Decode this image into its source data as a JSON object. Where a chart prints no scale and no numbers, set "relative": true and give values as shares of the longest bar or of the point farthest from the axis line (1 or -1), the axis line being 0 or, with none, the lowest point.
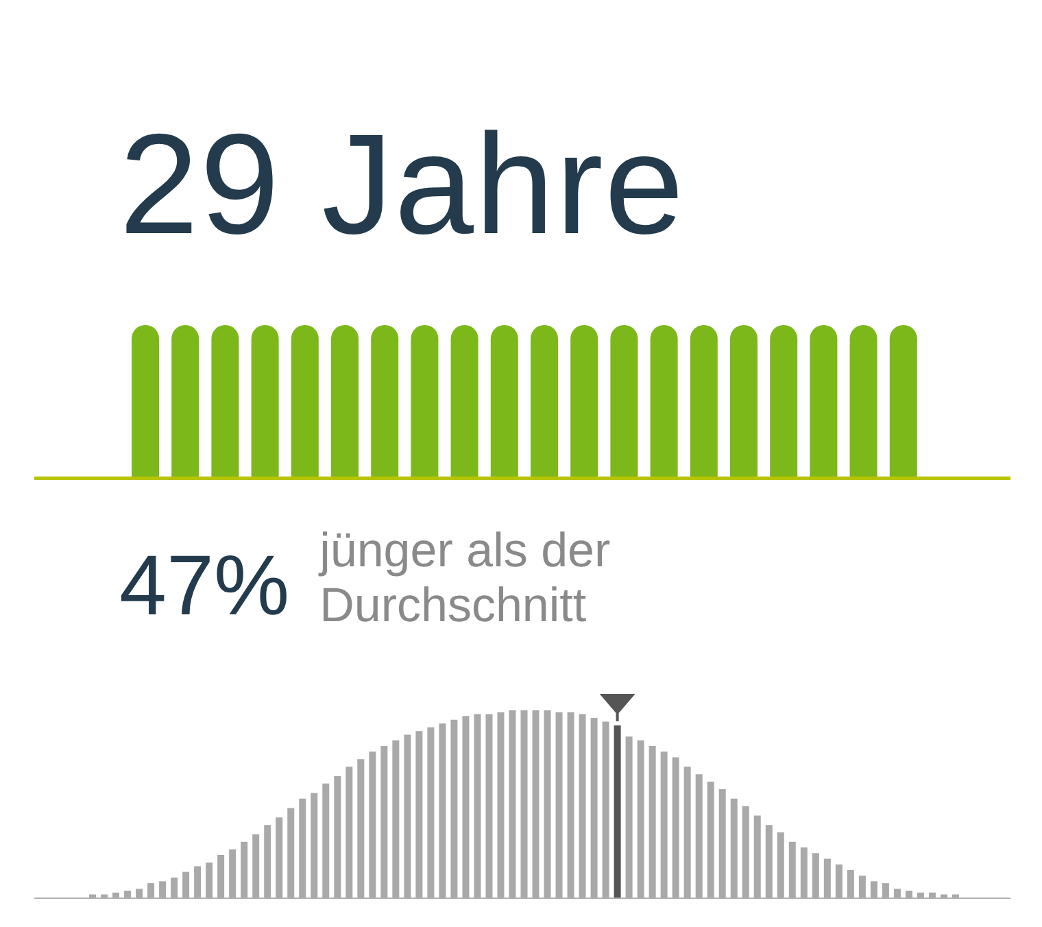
{
  "chart_data": [
    {
      "type": "bar",
      "title": "29 Jahre",
      "relative": true,
      "categories": [
        null,
        null,
        null,
        null,
        null,
        null,
        null,
        null,
        null,
        null,
        null,
        null,
        null,
        null,
        null,
        null,
        null,
        null,
        null,
        null
      ],
      "values": [
        1,
        1,
        1,
        1,
        1,
        1,
        1,
        1,
        1,
        1,
        1,
        1,
        1,
        1,
        1,
        1,
        1,
        1,
        1,
        1
      ],
      "color": "#7cb81a",
      "tick_labels": false
    },
    {
      "type": "bar",
      "title": "47%",
      "subtitle": "jünger als der Durchschnitt",
      "relative": true,
      "tick_labels": false,
      "categories": [
        null,
        null,
        null,
        null,
        null,
        null,
        null,
        null,
        null,
        null,
        null,
        null,
        null,
        null,
        null,
        null,
        null,
        null,
        null,
        null,
        null,
        null,
        null,
        null,
        null,
        null,
        null,
        null,
        null,
        null,
        null,
        null,
        null,
        null,
        null,
        null,
        null,
        null,
        null,
        null,
        null,
        null,
        null,
        null,
        null,
        null,
        null,
        null,
        null,
        null,
        null,
        null,
        null,
        null,
        null,
        null,
        null,
        null,
        null,
        null,
        null,
        null,
        null,
        null,
        null,
        null,
        null,
        null,
        null,
        null,
        null,
        null,
        null,
        null,
        null
      ],
      "values": [
        0.02,
        0.02,
        0.03,
        0.04,
        0.05,
        0.08,
        0.09,
        0.11,
        0.14,
        0.17,
        0.19,
        0.23,
        0.26,
        0.3,
        0.34,
        0.39,
        0.43,
        0.48,
        0.53,
        0.56,
        0.61,
        0.65,
        0.7,
        0.74,
        0.78,
        0.81,
        0.84,
        0.87,
        0.89,
        0.91,
        0.93,
        0.95,
        0.97,
        0.98,
        0.98,
        0.99,
        1,
        1,
        1,
        1,
        0.99,
        0.99,
        0.98,
        0.96,
        0.94,
        0.92,
        0.86,
        0.84,
        0.81,
        0.78,
        0.75,
        0.7,
        0.66,
        0.62,
        0.58,
        0.53,
        0.49,
        0.44,
        0.39,
        0.35,
        0.3,
        0.27,
        0.24,
        0.21,
        0.18,
        0.15,
        0.12,
        0.09,
        0.08,
        0.05,
        0.04,
        0.03,
        0.03,
        0.02,
        0.02
      ],
      "colors": [
        "#a9a9a9",
        "#a9a9a9",
        "#a9a9a9",
        "#a9a9a9",
        "#a9a9a9",
        "#a9a9a9",
        "#a9a9a9",
        "#a9a9a9",
        "#a9a9a9",
        "#a9a9a9",
        "#a9a9a9",
        "#a9a9a9",
        "#a9a9a9",
        "#a9a9a9",
        "#a9a9a9",
        "#a9a9a9",
        "#a9a9a9",
        "#a9a9a9",
        "#a9a9a9",
        "#a9a9a9",
        "#a9a9a9",
        "#a9a9a9",
        "#a9a9a9",
        "#a9a9a9",
        "#a9a9a9",
        "#a9a9a9",
        "#a9a9a9",
        "#a9a9a9",
        "#a9a9a9",
        "#a9a9a9",
        "#a9a9a9",
        "#a9a9a9",
        "#a9a9a9",
        "#a9a9a9",
        "#a9a9a9",
        "#a9a9a9",
        "#a9a9a9",
        "#a9a9a9",
        "#a9a9a9",
        "#a9a9a9",
        "#a9a9a9",
        "#a9a9a9",
        "#a9a9a9",
        "#a9a9a9",
        "#a9a9a9",
        "#555555",
        "#a9a9a9",
        "#a9a9a9",
        "#a9a9a9",
        "#a9a9a9",
        "#a9a9a9",
        "#a9a9a9",
        "#a9a9a9",
        "#a9a9a9",
        "#a9a9a9",
        "#a9a9a9",
        "#a9a9a9",
        "#a9a9a9",
        "#a9a9a9",
        "#a9a9a9",
        "#a9a9a9",
        "#a9a9a9",
        "#a9a9a9",
        "#a9a9a9",
        "#a9a9a9",
        "#a9a9a9",
        "#a9a9a9",
        "#a9a9a9",
        "#a9a9a9",
        "#a9a9a9",
        "#a9a9a9",
        "#a9a9a9",
        "#a9a9a9",
        "#a9a9a9",
        "#a9a9a9"
      ]
    }
  ]
}
